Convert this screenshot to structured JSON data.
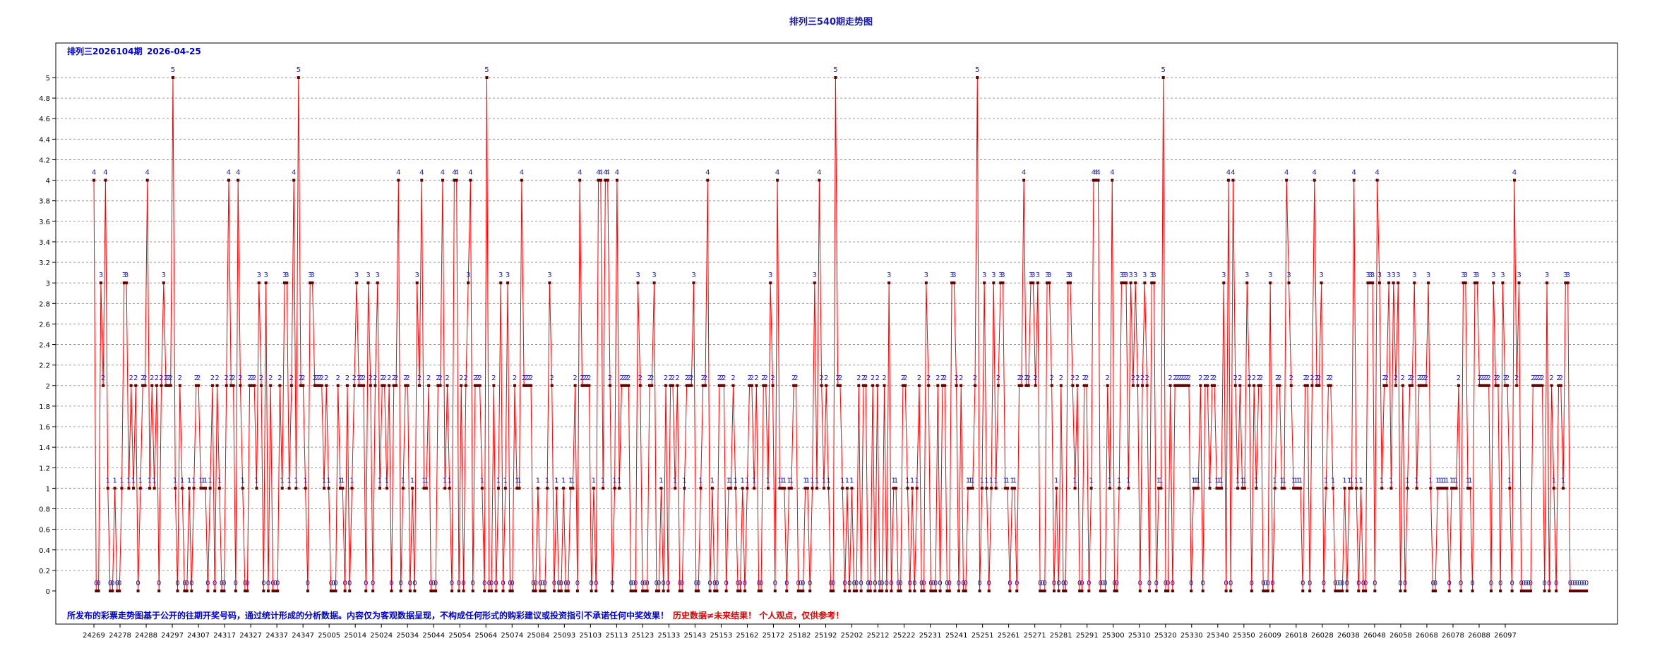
{
  "chart_data": {
    "type": "line",
    "title": "排列三540期走势图",
    "subtitle_issue": "排列三2026104期",
    "subtitle_date": "2026-04-25",
    "footer_blue": "所发布的彩票走势图基于公开的往期开奖号码，通过统计形成的分析数据。内容仅为客观数据呈现，不构成任何形式的购彩建议或投资指引不承诺任何中奖效果！",
    "footer_red": "历史数据≠未来结果！ 个人观点，仅供参考！",
    "ylim": [
      0,
      5
    ],
    "yticks": [
      "0",
      "0.2",
      "0.4",
      "0.6",
      "0.8",
      "1",
      "1.2",
      "1.4",
      "1.6",
      "1.8",
      "2",
      "2.2",
      "2.4",
      "2.6",
      "2.8",
      "3",
      "3.2",
      "3.4",
      "3.6",
      "3.8",
      "4",
      "4.2",
      "4.4",
      "4.6",
      "4.8",
      "5"
    ],
    "grid": true,
    "line_color": "#ff0000",
    "marker_color": "#660000",
    "label_color": "#1a1aa8",
    "x_tick_labels": [
      "24269",
      "24278",
      "24288",
      "24297",
      "24307",
      "24317",
      "24327",
      "24337",
      "24347",
      "25005",
      "25014",
      "25024",
      "25034",
      "25044",
      "25054",
      "25064",
      "25074",
      "25084",
      "25093",
      "25103",
      "25113",
      "25123",
      "25133",
      "25143",
      "25153",
      "25162",
      "25172",
      "25182",
      "25192",
      "25202",
      "25212",
      "25222",
      "25231",
      "25241",
      "25251",
      "25261",
      "25271",
      "25281",
      "25291",
      "25300",
      "25310",
      "25320",
      "25330",
      "25340",
      "25350",
      "26009",
      "26018",
      "26028",
      "26038",
      "26048",
      "26058",
      "26068",
      "26078",
      "26088",
      "26097"
    ],
    "series": [
      {
        "values": [
          4,
          0,
          0,
          3,
          2,
          4,
          1,
          0,
          0,
          1,
          0,
          0,
          1,
          3,
          3,
          1,
          2,
          1,
          2,
          0,
          1,
          2,
          2,
          4,
          1,
          2,
          1,
          2,
          0,
          2,
          3,
          2,
          2,
          2,
          5,
          1,
          0,
          2,
          1,
          0,
          0,
          1,
          0,
          1,
          2,
          2,
          1,
          1,
          1,
          0,
          1,
          2,
          0,
          2,
          1,
          0,
          0,
          2,
          4,
          2,
          2,
          0,
          4,
          2,
          1,
          0,
          0,
          2,
          2,
          2,
          1,
          3,
          2,
          0,
          3,
          0,
          2,
          0,
          0,
          0,
          2,
          1,
          3,
          3,
          1,
          2,
          4,
          1,
          5,
          2,
          2,
          1,
          0,
          3,
          3,
          2,
          2,
          2,
          2,
          1,
          2,
          1,
          0,
          0,
          0,
          2,
          1,
          1,
          0,
          2,
          0,
          1,
          2,
          3,
          2,
          2,
          2,
          0,
          3,
          2,
          0,
          2,
          3,
          1,
          2,
          2,
          1,
          2,
          0,
          2,
          2,
          4,
          0,
          1,
          2,
          2,
          0,
          1,
          0,
          3,
          2,
          4,
          1,
          1,
          2,
          0,
          0,
          0,
          2,
          2,
          4,
          1,
          2,
          1,
          0,
          4,
          4,
          0,
          2,
          0,
          2,
          3,
          4,
          0,
          2,
          2,
          2,
          1,
          0,
          5,
          0,
          0,
          2,
          0,
          1,
          3,
          0,
          1,
          3,
          0,
          0,
          2,
          1,
          1,
          4,
          2,
          2,
          2,
          2,
          0,
          0,
          1,
          0,
          0,
          0,
          1,
          3,
          2,
          0,
          1,
          0,
          0,
          1,
          0,
          0,
          1,
          1,
          2,
          0,
          4,
          2,
          2,
          2,
          2,
          0,
          1,
          0,
          4,
          4,
          1,
          4,
          4,
          2,
          0,
          1,
          4,
          1,
          2,
          2,
          2,
          2,
          0,
          0,
          0,
          3,
          2,
          0,
          0,
          0,
          2,
          2,
          3,
          0,
          0,
          1,
          0,
          2,
          0,
          2,
          2,
          1,
          2,
          0,
          0,
          1,
          2,
          2,
          2,
          3,
          0,
          0,
          1,
          2,
          2,
          4,
          0,
          1,
          0,
          0,
          2,
          2,
          2,
          0,
          1,
          1,
          2,
          1,
          0,
          0,
          1,
          0,
          1,
          2,
          2,
          1,
          2,
          0,
          0,
          2,
          2,
          1,
          3,
          2,
          0,
          4,
          1,
          1,
          1,
          0,
          1,
          1,
          2,
          2,
          0,
          0,
          0,
          1,
          1,
          0,
          1,
          3,
          1,
          4,
          2,
          1,
          2,
          1,
          0,
          0,
          5,
          2,
          2,
          1,
          0,
          1,
          0,
          1,
          0,
          0,
          2,
          0,
          2,
          2,
          0,
          0,
          2,
          0,
          2,
          0,
          0,
          2,
          0,
          3,
          0,
          1,
          1,
          0,
          0,
          2,
          2,
          1,
          0,
          1,
          0,
          1,
          2,
          0,
          0,
          3,
          2,
          0,
          0,
          0,
          2,
          0,
          2,
          2,
          0,
          0,
          3,
          3,
          2,
          0,
          2,
          0,
          0,
          1,
          1,
          1,
          2,
          5,
          0,
          1,
          3,
          1,
          0,
          1,
          3,
          1,
          2,
          3,
          3,
          1,
          1,
          0,
          1,
          1,
          0,
          2,
          2,
          4,
          2,
          2,
          3,
          3,
          2,
          3,
          0,
          0,
          0,
          3,
          3,
          2,
          0,
          1,
          0,
          2,
          0,
          0,
          3,
          3,
          2,
          1,
          2,
          0,
          0,
          2,
          2,
          0,
          1,
          4,
          4,
          4,
          0,
          0,
          0,
          2,
          1,
          4,
          0,
          0,
          1,
          3,
          3,
          3,
          1,
          3,
          2,
          3,
          2,
          0,
          2,
          3,
          2,
          0,
          3,
          3,
          0,
          1,
          1,
          5,
          0,
          0,
          2,
          0,
          2,
          2,
          2,
          2,
          2,
          2,
          2,
          0,
          1,
          1,
          1,
          2,
          0,
          2,
          2,
          1,
          2,
          2,
          1,
          1,
          1,
          3,
          0,
          4,
          0,
          4,
          2,
          1,
          2,
          1,
          1,
          3,
          2,
          0,
          2,
          1,
          2,
          2,
          0,
          0,
          0,
          3,
          0,
          1,
          2,
          2,
          1,
          1,
          4,
          3,
          2,
          1,
          1,
          1,
          1,
          0,
          2,
          2,
          0,
          2,
          4,
          2,
          2,
          3,
          0,
          1,
          2,
          2,
          1,
          0,
          0,
          0,
          0,
          1,
          0,
          1,
          1,
          4,
          1,
          0,
          1,
          0,
          0,
          3,
          3,
          3,
          0,
          4,
          3,
          1,
          2,
          2,
          3,
          1,
          3,
          2,
          3,
          0,
          2,
          0,
          1,
          2,
          2,
          3,
          1,
          2,
          2,
          2,
          2,
          3,
          1,
          0,
          0,
          1,
          1,
          1,
          1,
          1,
          0,
          1,
          1,
          1,
          2,
          0,
          3,
          3,
          1,
          1,
          0,
          3,
          3,
          2,
          2,
          2,
          2,
          2,
          0,
          3,
          2,
          2,
          0,
          3,
          2,
          2,
          1,
          0,
          4,
          2,
          3,
          0,
          0,
          0,
          0,
          0,
          2,
          2,
          2,
          2,
          2,
          0,
          3,
          0,
          2,
          1,
          0,
          2,
          2,
          1,
          3,
          3,
          0,
          0,
          0,
          0,
          0,
          0,
          0,
          0
        ]
      }
    ]
  }
}
